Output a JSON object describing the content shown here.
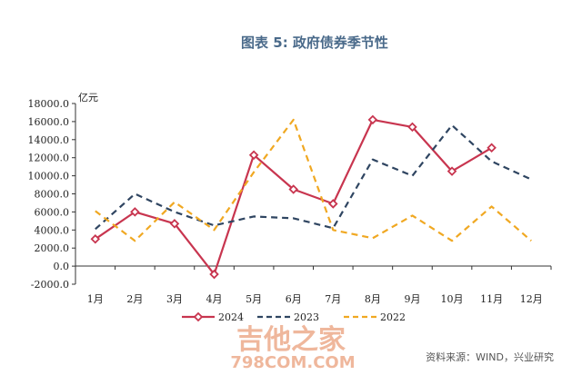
{
  "chart_data": {
    "type": "line",
    "title": "图表 5:  政府债券季节性",
    "ylabel": "亿元",
    "xlabel": "",
    "categories": [
      "1月",
      "2月",
      "3月",
      "4月",
      "5月",
      "6月",
      "7月",
      "8月",
      "9月",
      "10月",
      "11月",
      "12月"
    ],
    "y_ticks": [
      "18000.0",
      "16000.0",
      "14000.0",
      "12000.0",
      "10000.0",
      "8000.0",
      "6000.0",
      "4000.0",
      "2000.0",
      "0.0",
      "-2000.0"
    ],
    "ylim": [
      -2000,
      18000
    ],
    "grid": false,
    "legend_position": "bottom",
    "series": [
      {
        "name": "2024",
        "color": "#c8354f",
        "style": "solid-diamond",
        "values": [
          3000,
          6000,
          4700,
          -900,
          12300,
          8500,
          6900,
          16200,
          15400,
          10500,
          13100,
          null
        ]
      },
      {
        "name": "2023",
        "color": "#2f4561",
        "style": "dashed",
        "values": [
          4100,
          8000,
          6000,
          4500,
          5500,
          5300,
          4200,
          11800,
          10000,
          15600,
          11600,
          9600
        ]
      },
      {
        "name": "2022",
        "color": "#f0a822",
        "style": "dashed",
        "values": [
          6100,
          2800,
          7100,
          4000,
          10400,
          16200,
          4000,
          3100,
          5600,
          2800,
          6600,
          2800
        ]
      }
    ]
  },
  "source": "资料来源：WIND，兴业研究",
  "watermark": {
    "line1": "吉他之家",
    "line2": "798COM.COM"
  }
}
